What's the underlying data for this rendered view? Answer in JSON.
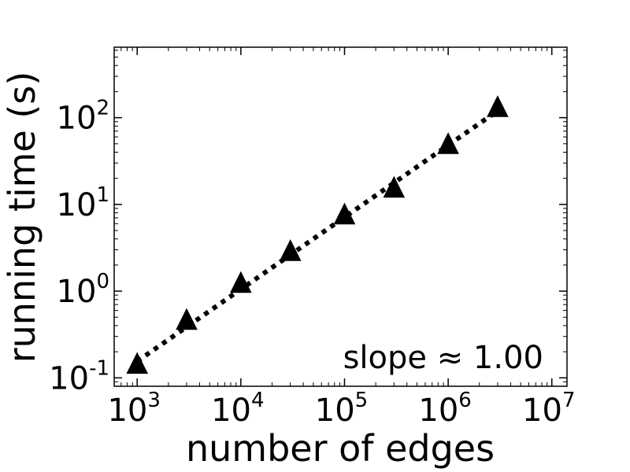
{
  "chart_data": {
    "type": "scatter",
    "xlabel": "number of edges",
    "ylabel": "running time (s)",
    "xscale": "log",
    "yscale": "log",
    "xlim": [
      600,
      14000000
    ],
    "ylim": [
      0.08,
      650
    ],
    "grid": false,
    "x_ticks": [
      {
        "base": "10",
        "exp": "3",
        "value": 1000
      },
      {
        "base": "10",
        "exp": "4",
        "value": 10000
      },
      {
        "base": "10",
        "exp": "5",
        "value": 100000
      },
      {
        "base": "10",
        "exp": "6",
        "value": 1000000
      },
      {
        "base": "10",
        "exp": "7",
        "value": 10000000
      }
    ],
    "y_ticks": [
      {
        "base": "10",
        "exp": "-1",
        "value": 0.1
      },
      {
        "base": "10",
        "exp": "0",
        "value": 1
      },
      {
        "base": "10",
        "exp": "1",
        "value": 10
      },
      {
        "base": "10",
        "exp": "2",
        "value": 100
      }
    ],
    "series": [
      {
        "marker": "triangle",
        "color": "#000000",
        "x": [
          1000,
          3000,
          10000,
          30000,
          100000,
          300000,
          1000000,
          3000000
        ],
        "y": [
          0.14,
          0.45,
          1.2,
          2.8,
          7.4,
          15,
          48,
          128
        ]
      }
    ],
    "fit_line": {
      "style": "dotted",
      "color": "#000000",
      "x": [
        1000,
        3000000
      ],
      "y": [
        0.155,
        120
      ]
    },
    "annotation": "slope ≈ 1.00"
  }
}
